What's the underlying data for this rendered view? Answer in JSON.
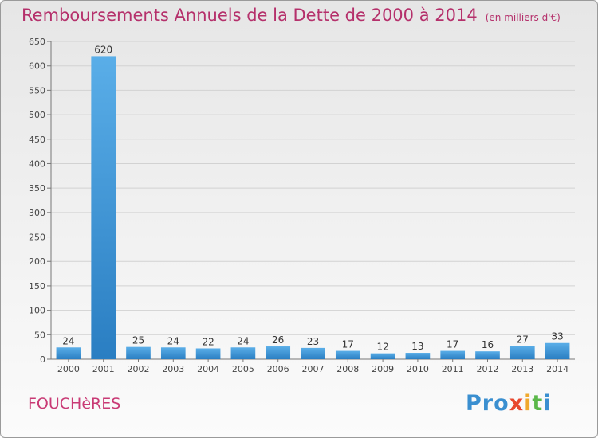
{
  "chart_data": {
    "type": "bar",
    "title": "Remboursements Annuels de la Dette de 2000 à 2014",
    "subtitle": "(en milliers d'€)",
    "categories": [
      "2000",
      "2001",
      "2002",
      "2003",
      "2004",
      "2005",
      "2006",
      "2007",
      "2008",
      "2009",
      "2010",
      "2011",
      "2012",
      "2013",
      "2014"
    ],
    "values": [
      24,
      620,
      25,
      24,
      22,
      24,
      26,
      23,
      17,
      12,
      13,
      17,
      16,
      27,
      33
    ],
    "ylim": [
      0,
      650
    ],
    "yticks": [
      0,
      50,
      100,
      150,
      200,
      250,
      300,
      350,
      400,
      450,
      500,
      550,
      600,
      650
    ],
    "grid": true,
    "colors": {
      "bar_light": "#5aaee8",
      "bar_dark": "#2a7ec2",
      "title": "#b5306b"
    }
  },
  "footer": {
    "commune": "FOUCHèRES",
    "logo_letters": [
      {
        "ch": "P",
        "color": "#3a8fd0"
      },
      {
        "ch": "r",
        "color": "#3a8fd0"
      },
      {
        "ch": "o",
        "color": "#3a8fd0"
      },
      {
        "ch": "x",
        "color": "#e8472e"
      },
      {
        "ch": "i",
        "color": "#f0a92d"
      },
      {
        "ch": "t",
        "color": "#5bb84a"
      },
      {
        "ch": "i",
        "color": "#3a8fd0"
      }
    ]
  }
}
